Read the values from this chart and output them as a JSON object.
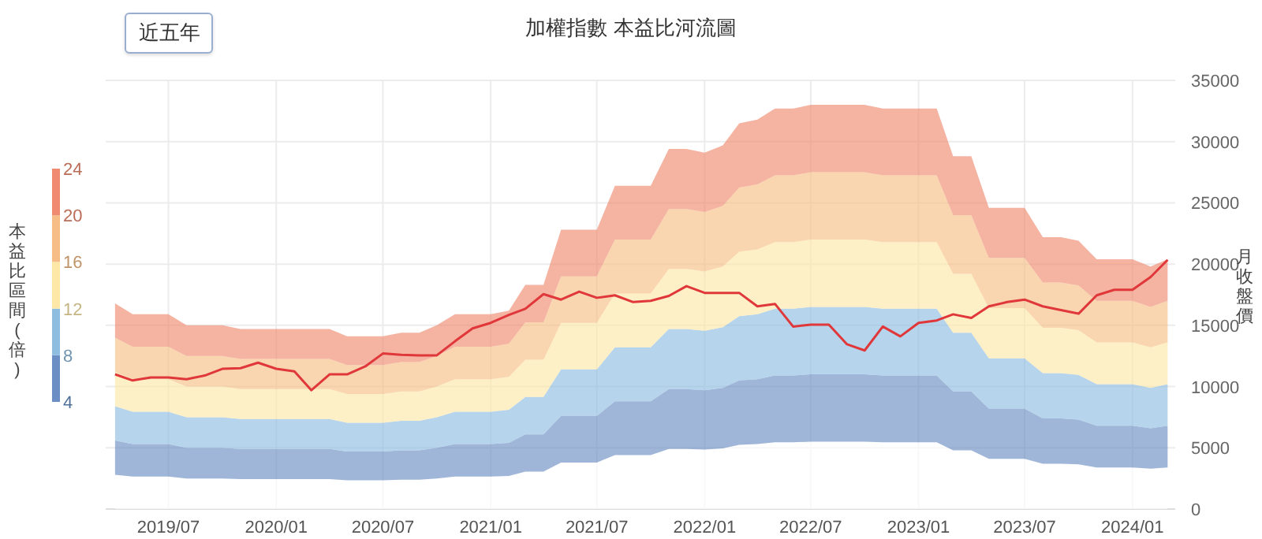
{
  "chart_data": {
    "type": "area",
    "stacked": true,
    "title": "加權指數 本益比河流圖",
    "ylabel": "月收盤價",
    "clabel": "本益比區間(倍)",
    "annotations": [
      "近五年"
    ],
    "clim": [
      4,
      24
    ],
    "cticks": [
      4,
      8,
      12,
      16,
      20,
      24
    ],
    "x": [
      "2019-04",
      "2019-05",
      "2019-06",
      "2019-07",
      "2019-08",
      "2019-09",
      "2019-10",
      "2019-11",
      "2019-12",
      "2020-01",
      "2020-02",
      "2020-03",
      "2020-04",
      "2020-05",
      "2020-06",
      "2020-07",
      "2020-08",
      "2020-09",
      "2020-10",
      "2020-11",
      "2020-12",
      "2021-01",
      "2021-02",
      "2021-03",
      "2021-04",
      "2021-05",
      "2021-06",
      "2021-07",
      "2021-08",
      "2021-09",
      "2021-10",
      "2021-11",
      "2021-12",
      "2022-01",
      "2022-02",
      "2022-03",
      "2022-04",
      "2022-05",
      "2022-06",
      "2022-07",
      "2022-08",
      "2022-09",
      "2022-10",
      "2022-11",
      "2022-12",
      "2023-01",
      "2023-02",
      "2023-03",
      "2023-04",
      "2023-05",
      "2023-06",
      "2023-07",
      "2023-08",
      "2023-09",
      "2023-10",
      "2023-11",
      "2023-12",
      "2024-01",
      "2024-02",
      "2024-03"
    ],
    "xlim": [
      "2019-03-16",
      "2024-03-14"
    ],
    "xticks": [
      {
        "value": "2019-07",
        "label": "2019/07"
      },
      {
        "value": "2020-01",
        "label": "2020/01"
      },
      {
        "value": "2020-07",
        "label": "2020/07"
      },
      {
        "value": "2021-01",
        "label": "2021/01"
      },
      {
        "value": "2021-07",
        "label": "2021/07"
      },
      {
        "value": "2022-01",
        "label": "2022/01"
      },
      {
        "value": "2022-07",
        "label": "2022/07"
      },
      {
        "value": "2023-01",
        "label": "2023/01"
      },
      {
        "value": "2023-07",
        "label": "2023/07"
      },
      {
        "value": "2024-01",
        "label": "2024/01"
      }
    ],
    "ylim": [
      0,
      35000
    ],
    "yticks": [
      0,
      5000,
      10000,
      15000,
      20000,
      25000,
      30000,
      35000
    ],
    "grid": true,
    "series": [
      {
        "color": "#ffffff",
        "values": [
          2800,
          2650,
          2650,
          2650,
          2500,
          2500,
          2500,
          2450,
          2450,
          2450,
          2450,
          2450,
          2450,
          2350,
          2350,
          2350,
          2400,
          2400,
          2500,
          2650,
          2650,
          2650,
          2700,
          3050,
          3050,
          3800,
          3800,
          3800,
          4400,
          4400,
          4400,
          4900,
          4900,
          4850,
          4950,
          5250,
          5300,
          5450,
          5450,
          5500,
          5500,
          5500,
          5500,
          5450,
          5450,
          5450,
          5450,
          4800,
          4800,
          4100,
          4100,
          4100,
          3700,
          3700,
          3650,
          3400,
          3400,
          3400,
          3300,
          3400
        ]
      },
      {
        "color": "#6b8fc4",
        "values": [
          2800,
          2650,
          2650,
          2650,
          2500,
          2500,
          2500,
          2450,
          2450,
          2450,
          2450,
          2450,
          2450,
          2350,
          2350,
          2350,
          2400,
          2400,
          2500,
          2650,
          2650,
          2650,
          2700,
          3050,
          3050,
          3800,
          3800,
          3800,
          4400,
          4400,
          4400,
          4900,
          4900,
          4850,
          4950,
          5250,
          5300,
          5450,
          5450,
          5500,
          5500,
          5500,
          5500,
          5450,
          5450,
          5450,
          5450,
          4800,
          4800,
          4100,
          4100,
          4100,
          3700,
          3700,
          3650,
          3400,
          3400,
          3400,
          3300,
          3400
        ]
      },
      {
        "color": "#8fbde0",
        "values": [
          2800,
          2650,
          2650,
          2650,
          2500,
          2500,
          2500,
          2450,
          2450,
          2450,
          2450,
          2450,
          2450,
          2350,
          2350,
          2350,
          2400,
          2400,
          2500,
          2650,
          2650,
          2650,
          2700,
          3050,
          3050,
          3800,
          3800,
          3800,
          4400,
          4400,
          4400,
          4900,
          4900,
          4850,
          4950,
          5250,
          5300,
          5450,
          5450,
          5500,
          5500,
          5500,
          5500,
          5450,
          5450,
          5450,
          5450,
          4800,
          4800,
          4100,
          4100,
          4100,
          3700,
          3700,
          3650,
          3400,
          3400,
          3400,
          3300,
          3400
        ]
      },
      {
        "color": "#fde8a8",
        "values": [
          2800,
          2650,
          2650,
          2650,
          2500,
          2500,
          2500,
          2450,
          2450,
          2450,
          2450,
          2450,
          2450,
          2350,
          2350,
          2350,
          2400,
          2400,
          2500,
          2650,
          2650,
          2650,
          2700,
          3050,
          3050,
          3800,
          3800,
          3800,
          4400,
          4400,
          4400,
          4900,
          4900,
          4850,
          4950,
          5250,
          5300,
          5450,
          5450,
          5500,
          5500,
          5500,
          5500,
          5450,
          5450,
          5450,
          5450,
          4800,
          4800,
          4100,
          4100,
          4100,
          3700,
          3700,
          3650,
          3400,
          3400,
          3400,
          3300,
          3400
        ]
      },
      {
        "color": "#f6be86",
        "values": [
          2800,
          2650,
          2650,
          2650,
          2500,
          2500,
          2500,
          2450,
          2450,
          2450,
          2450,
          2450,
          2450,
          2350,
          2350,
          2350,
          2400,
          2400,
          2500,
          2650,
          2650,
          2650,
          2700,
          3050,
          3050,
          3800,
          3800,
          3800,
          4400,
          4400,
          4400,
          4900,
          4900,
          4850,
          4950,
          5250,
          5300,
          5450,
          5450,
          5500,
          5500,
          5500,
          5500,
          5450,
          5450,
          5450,
          5450,
          4800,
          4800,
          4100,
          4100,
          4100,
          3700,
          3700,
          3650,
          3400,
          3400,
          3400,
          3300,
          3400
        ]
      },
      {
        "color": "#f08a70",
        "values": [
          2800,
          2650,
          2650,
          2650,
          2500,
          2500,
          2500,
          2450,
          2450,
          2450,
          2450,
          2450,
          2450,
          2350,
          2350,
          2350,
          2400,
          2400,
          2500,
          2650,
          2650,
          2650,
          2700,
          3050,
          3050,
          3800,
          3800,
          3800,
          4400,
          4400,
          4400,
          4900,
          4900,
          4850,
          4950,
          5250,
          5300,
          5450,
          5450,
          5500,
          5500,
          5500,
          5500,
          5450,
          5450,
          5450,
          5450,
          4800,
          4800,
          4100,
          4100,
          4100,
          3700,
          3700,
          3650,
          3400,
          3400,
          3400,
          3300,
          3400
        ]
      },
      {
        "type": "line",
        "color": "#e0383a",
        "values": [
          11000,
          10500,
          10750,
          10750,
          10600,
          10900,
          11450,
          11500,
          11950,
          11450,
          11250,
          9700,
          11000,
          11000,
          11650,
          12700,
          12600,
          12550,
          12550,
          13700,
          14750,
          15200,
          15850,
          16350,
          17550,
          17100,
          17750,
          17250,
          17450,
          16900,
          17000,
          17400,
          18200,
          17650,
          17650,
          17650,
          16550,
          16750,
          14900,
          15050,
          15050,
          13450,
          12950,
          14900,
          14100,
          15200,
          15400,
          15900,
          15600,
          16550,
          16900,
          17100,
          16550,
          16250,
          15950,
          17450,
          17900,
          17900,
          18950,
          20350
        ]
      }
    ]
  }
}
